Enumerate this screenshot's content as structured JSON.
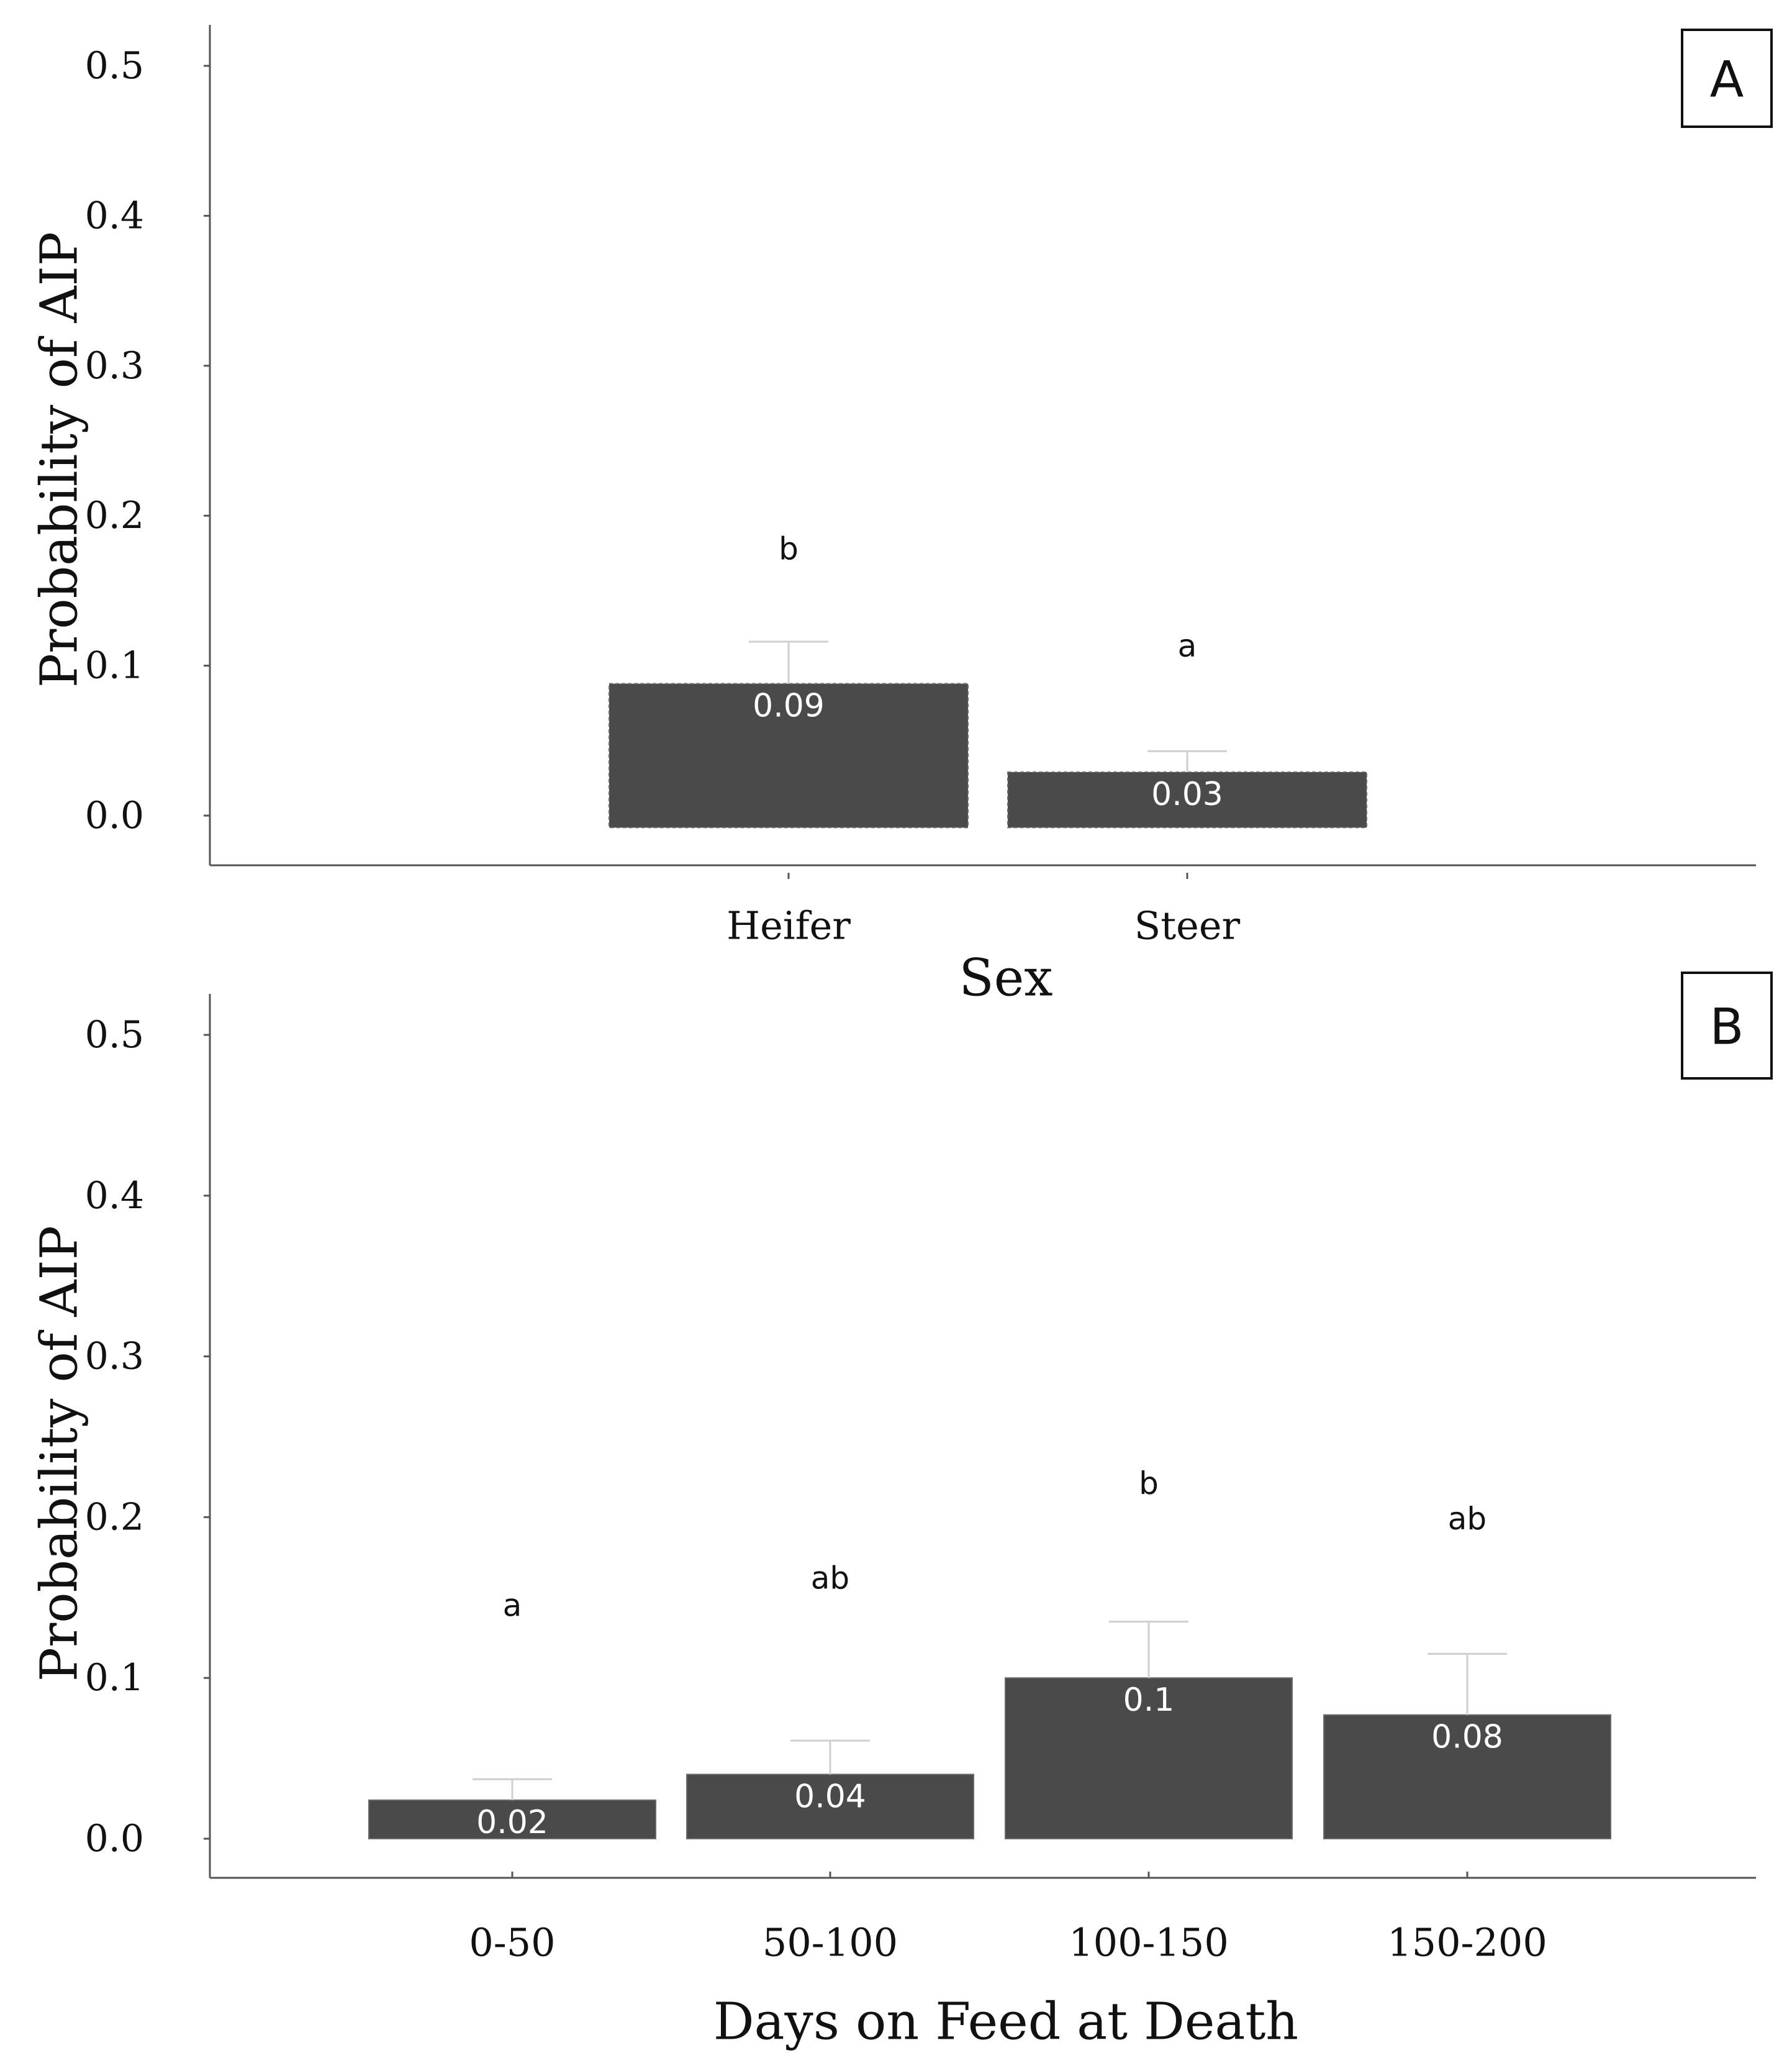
{
  "chart_data": [
    {
      "panel": "A",
      "type": "bar",
      "xlabel": "Sex",
      "ylabel": "Probability of AIP",
      "ylim": [
        -0.025,
        0.525
      ],
      "yticks": [
        0.0,
        0.1,
        0.2,
        0.3,
        0.4,
        0.5
      ],
      "ytick_labels": [
        "0.0",
        "0.1",
        "0.2",
        "0.3",
        "0.4",
        "0.5"
      ],
      "bar_start": -0.008,
      "bar_color": "#4a4a4a",
      "categories": [
        "Heifer",
        "Steer"
      ],
      "values": [
        0.088,
        0.029
      ],
      "value_labels": [
        "0.09",
        "0.03"
      ],
      "error_upper": [
        0.116,
        0.043
      ],
      "significance_letters": [
        "b",
        "a"
      ],
      "letter_positions": [
        0.178,
        0.113
      ]
    },
    {
      "panel": "B",
      "type": "bar",
      "xlabel": "Days on Feed at Death",
      "ylabel": "Probability of AIP",
      "ylim": [
        -0.025,
        0.525
      ],
      "yticks": [
        0.0,
        0.1,
        0.2,
        0.3,
        0.4,
        0.5
      ],
      "ytick_labels": [
        "0.0",
        "0.1",
        "0.2",
        "0.3",
        "0.4",
        "0.5"
      ],
      "bar_start": 0.0,
      "bar_color": "#4a4a4a",
      "categories": [
        "0-50",
        "50-100",
        "100-150",
        "150-200"
      ],
      "values": [
        0.024,
        0.04,
        0.1,
        0.077
      ],
      "value_labels": [
        "0.02",
        "0.04",
        "0.1",
        "0.08"
      ],
      "error_upper": [
        0.037,
        0.061,
        0.135,
        0.115
      ],
      "significance_letters": [
        "a",
        "ab",
        "b",
        "ab"
      ],
      "letter_positions": [
        0.145,
        0.162,
        0.221,
        0.199
      ]
    }
  ]
}
